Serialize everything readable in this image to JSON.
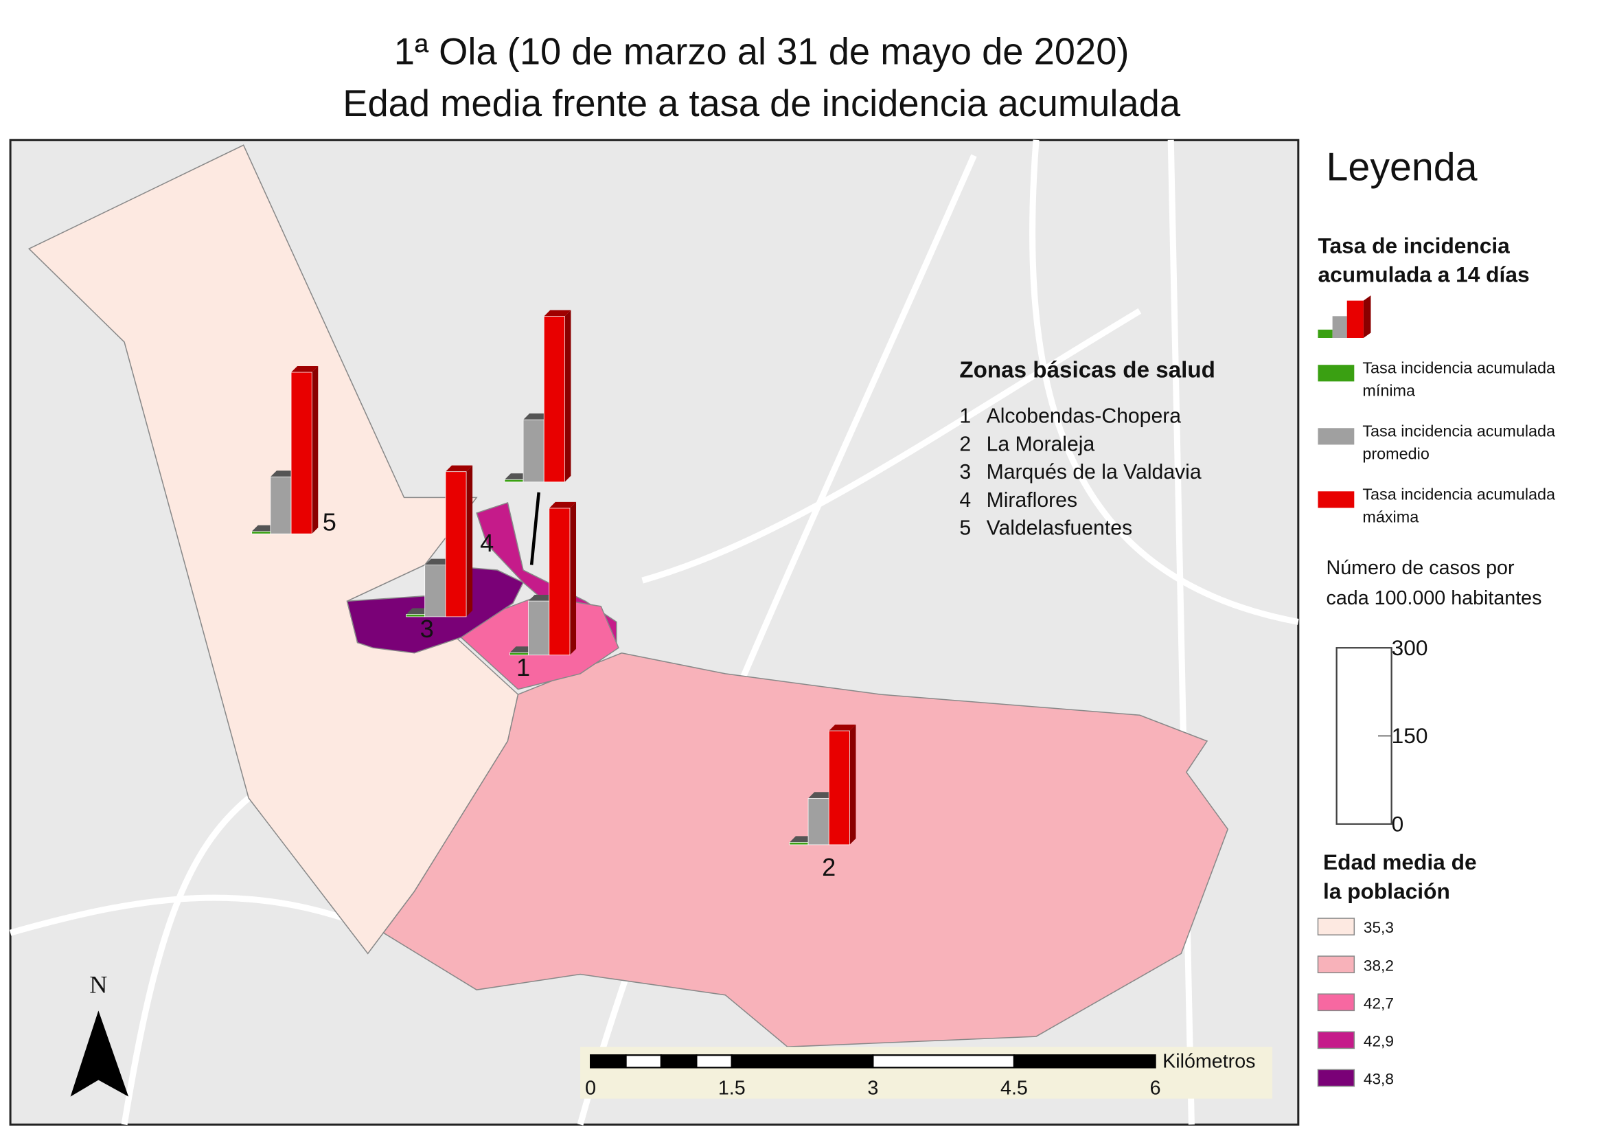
{
  "title": [
    "1ª Ola (10 de marzo al 31 de mayo de 2020)",
    "Edad media frente a tasa de incidencia acumulada"
  ],
  "legend": {
    "title": "Leyenda",
    "incidence_title": [
      "Tasa de incidencia",
      "acumulada a 14 días"
    ],
    "series": [
      {
        "name": [
          "Tasa incidencia acumulada",
          "mínima"
        ],
        "color": "#3aa012"
      },
      {
        "name": [
          "Tasa incidencia acumulada",
          "promedio"
        ],
        "color": "#a0a0a0"
      },
      {
        "name": [
          "Tasa incidencia acumulada",
          "máxima"
        ],
        "color": "#e80000"
      }
    ],
    "size_title": [
      "Número de casos por",
      "cada 100.000 habitantes"
    ],
    "size_lim": [
      0,
      300
    ],
    "size_ticks": [
      0,
      150,
      300
    ],
    "age_title": [
      "Edad media de",
      "la población"
    ],
    "age_classes": [
      {
        "value": 35.3,
        "label": "35,3",
        "color": "#fde9e1"
      },
      {
        "value": 38.2,
        "label": "38,2",
        "color": "#f8b2ba"
      },
      {
        "value": 42.7,
        "label": "42,7",
        "color": "#f768a1"
      },
      {
        "value": 42.9,
        "label": "42,9",
        "color": "#c51b8a"
      },
      {
        "value": 43.8,
        "label": "43,8",
        "color": "#7a0177"
      }
    ]
  },
  "zones_title": "Zonas básicas de salud",
  "zones": [
    {
      "number": 1,
      "name": "Alcobendas-Chopera",
      "age": 42.7,
      "incidence": [
        4,
        92,
        250
      ]
    },
    {
      "number": 2,
      "name": "La Moraleja",
      "age": 38.2,
      "incidence": [
        4,
        79,
        194
      ]
    },
    {
      "number": 3,
      "name": "Marqués de la Valdavia",
      "age": 43.8,
      "incidence": [
        4,
        88,
        247
      ]
    },
    {
      "number": 4,
      "name": "Miraflores",
      "age": 42.9,
      "incidence": [
        4,
        106,
        282
      ]
    },
    {
      "number": 5,
      "name": "Valdelasfuentes",
      "age": 35.3,
      "incidence": [
        4,
        97,
        275
      ]
    }
  ],
  "scale_bar": {
    "unit": "Kilómetros",
    "ticks": [
      0,
      1.5,
      3,
      4.5,
      6
    ]
  },
  "north": "N"
}
